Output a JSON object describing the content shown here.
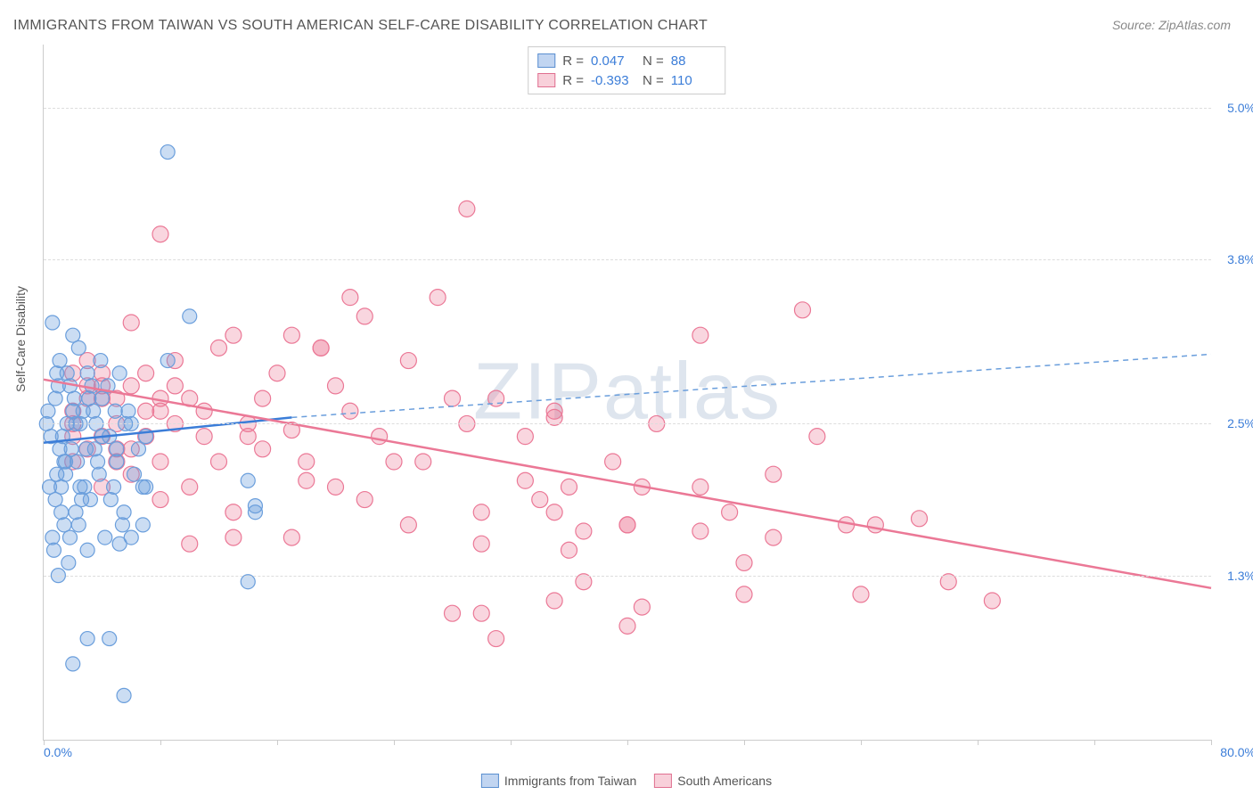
{
  "title": "IMMIGRANTS FROM TAIWAN VS SOUTH AMERICAN SELF-CARE DISABILITY CORRELATION CHART",
  "source": "Source: ZipAtlas.com",
  "ylabel": "Self-Care Disability",
  "watermark_zip": "ZIP",
  "watermark_atlas": "atlas",
  "chart": {
    "type": "scatter",
    "xlim": [
      0.0,
      80.0
    ],
    "ylim": [
      0.0,
      5.5
    ],
    "yticks": [
      1.3,
      2.5,
      3.8,
      5.0
    ],
    "ytick_labels": [
      "1.3%",
      "2.5%",
      "3.8%",
      "5.0%"
    ],
    "xticks": [
      0,
      8,
      16,
      24,
      32,
      40,
      48,
      56,
      64,
      72,
      80
    ],
    "x_start_label": "0.0%",
    "x_end_label": "80.0%",
    "background_color": "#ffffff",
    "grid_color": "#dddddd",
    "series_blue": {
      "label": "Immigrants from Taiwan",
      "R": "0.047",
      "N": "88",
      "color": "#6a9edc",
      "fill": "rgba(106,158,220,0.35)",
      "marker_radius": 8,
      "trend_solid": {
        "x1": 0,
        "y1": 2.35,
        "x2": 17,
        "y2": 2.55
      },
      "trend_dashed": {
        "x1": 17,
        "y1": 2.55,
        "x2": 80,
        "y2": 3.05
      },
      "points": [
        [
          0.5,
          2.4
        ],
        [
          1.0,
          2.8
        ],
        [
          1.5,
          2.2
        ],
        [
          2.0,
          2.6
        ],
        [
          0.8,
          1.9
        ],
        [
          1.2,
          2.0
        ],
        [
          2.5,
          2.5
        ],
        [
          3.0,
          2.9
        ],
        [
          0.6,
          3.3
        ],
        [
          1.8,
          1.6
        ],
        [
          2.2,
          1.8
        ],
        [
          0.9,
          2.1
        ],
        [
          3.5,
          2.3
        ],
        [
          4.0,
          2.7
        ],
        [
          1.1,
          3.0
        ],
        [
          2.8,
          2.0
        ],
        [
          0.7,
          1.5
        ],
        [
          1.4,
          1.7
        ],
        [
          3.2,
          1.9
        ],
        [
          4.5,
          2.4
        ],
        [
          5.0,
          2.2
        ],
        [
          1.6,
          2.9
        ],
        [
          2.4,
          3.1
        ],
        [
          0.3,
          2.6
        ],
        [
          1.9,
          2.3
        ],
        [
          3.8,
          2.1
        ],
        [
          5.5,
          1.8
        ],
        [
          6.0,
          2.5
        ],
        [
          2.1,
          2.7
        ],
        [
          0.4,
          2.0
        ],
        [
          1.3,
          2.4
        ],
        [
          2.7,
          2.6
        ],
        [
          3.3,
          2.8
        ],
        [
          4.2,
          1.6
        ],
        [
          1.7,
          1.4
        ],
        [
          5.2,
          2.9
        ],
        [
          6.5,
          2.3
        ],
        [
          2.6,
          1.9
        ],
        [
          0.2,
          2.5
        ],
        [
          1.5,
          2.1
        ],
        [
          3.6,
          2.5
        ],
        [
          4.8,
          2.0
        ],
        [
          2.3,
          2.2
        ],
        [
          5.8,
          2.6
        ],
        [
          7.0,
          2.4
        ],
        [
          1.0,
          1.3
        ],
        [
          2.0,
          3.2
        ],
        [
          3.0,
          1.5
        ],
        [
          4.4,
          2.8
        ],
        [
          0.8,
          2.7
        ],
        [
          1.6,
          2.5
        ],
        [
          2.9,
          2.3
        ],
        [
          5.4,
          1.7
        ],
        [
          3.9,
          3.0
        ],
        [
          6.2,
          2.1
        ],
        [
          1.2,
          1.8
        ],
        [
          2.5,
          2.0
        ],
        [
          4.0,
          2.4
        ],
        [
          0.6,
          1.6
        ],
        [
          1.8,
          2.8
        ],
        [
          3.4,
          2.6
        ],
        [
          5.0,
          2.3
        ],
        [
          2.2,
          2.5
        ],
        [
          4.6,
          1.9
        ],
        [
          1.4,
          2.2
        ],
        [
          6.8,
          2.0
        ],
        [
          3.1,
          2.7
        ],
        [
          0.9,
          2.9
        ],
        [
          2.4,
          1.7
        ],
        [
          5.6,
          2.5
        ],
        [
          1.1,
          2.3
        ],
        [
          3.7,
          2.2
        ],
        [
          4.9,
          2.6
        ],
        [
          2.0,
          0.6
        ],
        [
          5.5,
          0.35
        ],
        [
          8.5,
          4.65
        ],
        [
          10.0,
          3.35
        ],
        [
          3.0,
          0.8
        ],
        [
          14.0,
          1.25
        ],
        [
          14.5,
          1.8
        ],
        [
          14.5,
          1.85
        ],
        [
          7.0,
          2.0
        ],
        [
          8.5,
          3.0
        ],
        [
          14.0,
          2.05
        ],
        [
          4.5,
          0.8
        ],
        [
          5.2,
          1.55
        ],
        [
          6.0,
          1.6
        ],
        [
          6.8,
          1.7
        ]
      ]
    },
    "series_pink": {
      "label": "South Americans",
      "R": "-0.393",
      "N": "110",
      "color": "#eb7896",
      "fill": "rgba(235,120,150,0.30)",
      "marker_radius": 9,
      "trend": {
        "x1": 0,
        "y1": 2.85,
        "x2": 80,
        "y2": 1.2
      },
      "points": [
        [
          2,
          2.5
        ],
        [
          3,
          2.8
        ],
        [
          5,
          2.2
        ],
        [
          7,
          2.6
        ],
        [
          8,
          1.9
        ],
        [
          9,
          3.0
        ],
        [
          10,
          2.7
        ],
        [
          11,
          2.4
        ],
        [
          12,
          3.1
        ],
        [
          13,
          1.8
        ],
        [
          14,
          2.5
        ],
        [
          15,
          2.3
        ],
        [
          16,
          2.9
        ],
        [
          17,
          1.6
        ],
        [
          18,
          2.2
        ],
        [
          19,
          3.1
        ],
        [
          20,
          2.0
        ],
        [
          21,
          2.6
        ],
        [
          22,
          1.9
        ],
        [
          23,
          2.4
        ],
        [
          24,
          2.2
        ],
        [
          25,
          1.7
        ],
        [
          26,
          2.2
        ],
        [
          27,
          3.5
        ],
        [
          28,
          2.7
        ],
        [
          28,
          1.0
        ],
        [
          29,
          4.2
        ],
        [
          30,
          1.8
        ],
        [
          31,
          2.7
        ],
        [
          31,
          0.8
        ],
        [
          22,
          3.35
        ],
        [
          33,
          2.4
        ],
        [
          34,
          1.9
        ],
        [
          35,
          2.6
        ],
        [
          36,
          1.5
        ],
        [
          13,
          3.2
        ],
        [
          37,
          1.25
        ],
        [
          39,
          2.2
        ],
        [
          40,
          1.7
        ],
        [
          35,
          1.8
        ],
        [
          42,
          2.5
        ],
        [
          41,
          1.05
        ],
        [
          35,
          1.1
        ],
        [
          45,
          3.2
        ],
        [
          37,
          1.65
        ],
        [
          47,
          1.8
        ],
        [
          48,
          1.4
        ],
        [
          48,
          1.15
        ],
        [
          50,
          1.6
        ],
        [
          50,
          2.1
        ],
        [
          36,
          2.0
        ],
        [
          53,
          2.4
        ],
        [
          52,
          3.4
        ],
        [
          55,
          1.7
        ],
        [
          25,
          3.0
        ],
        [
          56,
          1.15
        ],
        [
          45,
          1.65
        ],
        [
          30,
          1.0
        ],
        [
          60,
          1.75
        ],
        [
          40,
          0.9
        ],
        [
          62,
          1.25
        ],
        [
          12,
          2.2
        ],
        [
          8,
          4.0
        ],
        [
          65,
          1.1
        ],
        [
          4,
          2.8
        ],
        [
          4,
          2.7
        ],
        [
          6,
          2.3
        ],
        [
          19,
          3.1
        ],
        [
          3,
          3.0
        ],
        [
          2,
          2.2
        ],
        [
          40,
          1.7
        ],
        [
          7,
          2.9
        ],
        [
          21,
          3.5
        ],
        [
          5,
          2.5
        ],
        [
          17,
          2.45
        ],
        [
          3,
          2.7
        ],
        [
          35,
          2.55
        ],
        [
          6,
          2.1
        ],
        [
          41,
          2.0
        ],
        [
          4,
          2.4
        ],
        [
          30,
          1.55
        ],
        [
          8,
          2.6
        ],
        [
          29,
          2.5
        ],
        [
          2,
          2.9
        ],
        [
          10,
          1.55
        ],
        [
          5,
          2.3
        ],
        [
          13,
          1.6
        ],
        [
          18,
          2.05
        ],
        [
          11,
          2.6
        ],
        [
          17,
          3.2
        ],
        [
          9,
          2.8
        ],
        [
          14,
          2.4
        ],
        [
          45,
          2.0
        ],
        [
          6,
          3.3
        ],
        [
          57,
          1.7
        ],
        [
          20,
          2.8
        ],
        [
          10,
          2.0
        ],
        [
          15,
          2.7
        ],
        [
          4,
          2.0
        ],
        [
          8,
          2.2
        ],
        [
          33,
          2.05
        ],
        [
          2,
          2.6
        ],
        [
          7,
          2.4
        ],
        [
          5,
          2.7
        ],
        [
          3,
          2.3
        ],
        [
          9,
          2.5
        ],
        [
          6,
          2.8
        ],
        [
          4,
          2.9
        ],
        [
          2,
          2.4
        ],
        [
          8,
          2.7
        ]
      ]
    }
  },
  "bottom_legend": [
    {
      "style": "blue",
      "label": "Immigrants from Taiwan"
    },
    {
      "style": "pink",
      "label": "South Americans"
    }
  ]
}
